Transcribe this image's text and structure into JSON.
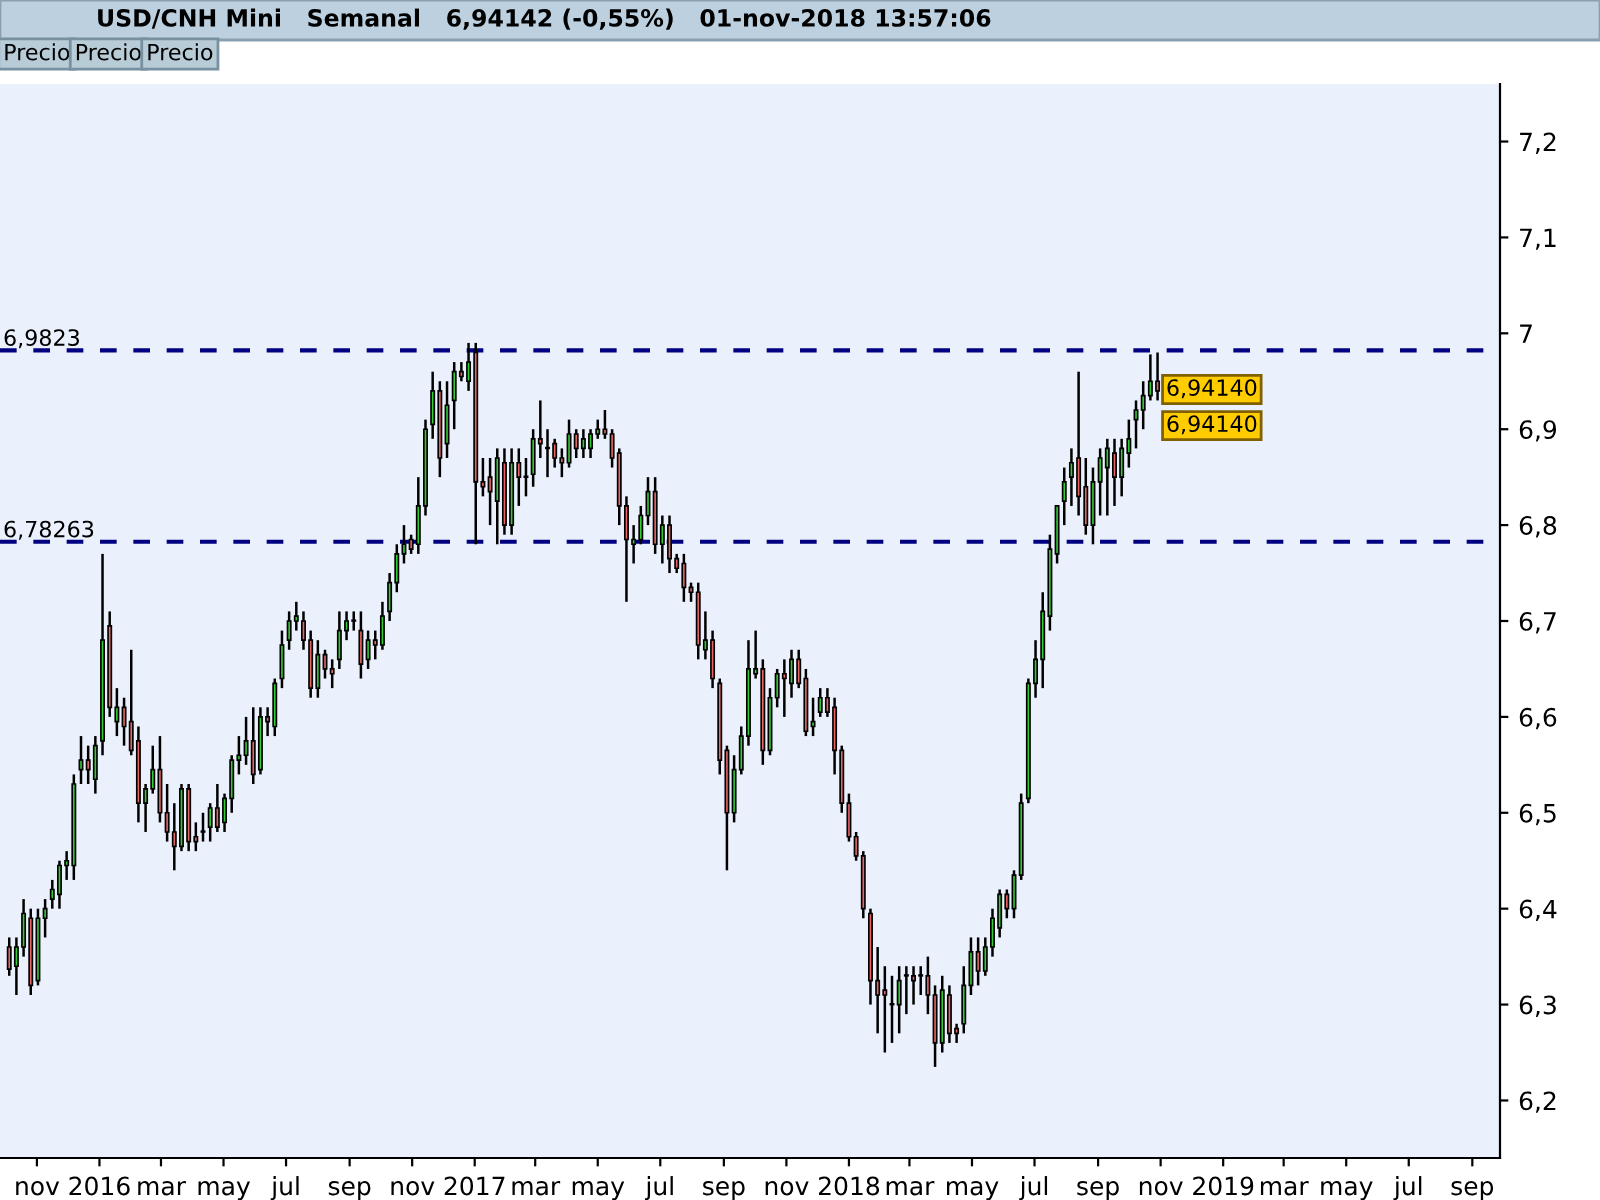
{
  "chart_data": {
    "type": "candlestick",
    "title": "USD/CNH Mini   Semanal   6,94142 (-0,55%)   01-nov-2018 13:57:06",
    "x": [
      "2015-10-05",
      "2015-10-12",
      "2015-10-19",
      "2015-10-26",
      "2015-11-02",
      "2015-11-09",
      "2015-11-16",
      "2015-11-23",
      "2015-11-30",
      "2015-12-07",
      "2015-12-14",
      "2015-12-21",
      "2015-12-28",
      "2016-01-04",
      "2016-01-11",
      "2016-01-18",
      "2016-01-25",
      "2016-02-01",
      "2016-02-08",
      "2016-02-15",
      "2016-02-22",
      "2016-02-29",
      "2016-03-07",
      "2016-03-14",
      "2016-03-21",
      "2016-03-28",
      "2016-04-04",
      "2016-04-11",
      "2016-04-18",
      "2016-04-25",
      "2016-05-02",
      "2016-05-09",
      "2016-05-16",
      "2016-05-23",
      "2016-05-30",
      "2016-06-06",
      "2016-06-13",
      "2016-06-20",
      "2016-06-27",
      "2016-07-04",
      "2016-07-11",
      "2016-07-18",
      "2016-07-25",
      "2016-08-01",
      "2016-08-08",
      "2016-08-15",
      "2016-08-22",
      "2016-08-29",
      "2016-09-05",
      "2016-09-12",
      "2016-09-19",
      "2016-09-26",
      "2016-10-03",
      "2016-10-10",
      "2016-10-17",
      "2016-10-24",
      "2016-10-31",
      "2016-11-07",
      "2016-11-14",
      "2016-11-21",
      "2016-11-28",
      "2016-12-05",
      "2016-12-12",
      "2016-12-19",
      "2016-12-26",
      "2017-01-02",
      "2017-01-09",
      "2017-01-16",
      "2017-01-23",
      "2017-01-30",
      "2017-02-06",
      "2017-02-13",
      "2017-02-20",
      "2017-02-27",
      "2017-03-06",
      "2017-03-13",
      "2017-03-20",
      "2017-03-27",
      "2017-04-03",
      "2017-04-10",
      "2017-04-17",
      "2017-04-24",
      "2017-05-01",
      "2017-05-08",
      "2017-05-15",
      "2017-05-22",
      "2017-05-29",
      "2017-06-05",
      "2017-06-12",
      "2017-06-19",
      "2017-06-26",
      "2017-07-03",
      "2017-07-10",
      "2017-07-17",
      "2017-07-24",
      "2017-07-31",
      "2017-08-07",
      "2017-08-14",
      "2017-08-21",
      "2017-08-28",
      "2017-09-04",
      "2017-09-11",
      "2017-09-18",
      "2017-09-25",
      "2017-10-02",
      "2017-10-09",
      "2017-10-16",
      "2017-10-23",
      "2017-10-30",
      "2017-11-06",
      "2017-11-13",
      "2017-11-20",
      "2017-11-27",
      "2017-12-04",
      "2017-12-11",
      "2017-12-18",
      "2017-12-25",
      "2018-01-01",
      "2018-01-08",
      "2018-01-15",
      "2018-01-22",
      "2018-01-29",
      "2018-02-05",
      "2018-02-12",
      "2018-02-19",
      "2018-02-26",
      "2018-03-05",
      "2018-03-12",
      "2018-03-19",
      "2018-03-26",
      "2018-04-02",
      "2018-04-09",
      "2018-04-16",
      "2018-04-23",
      "2018-04-30",
      "2018-05-07",
      "2018-05-14",
      "2018-05-21",
      "2018-05-28",
      "2018-06-04",
      "2018-06-11",
      "2018-06-18",
      "2018-06-25",
      "2018-07-02",
      "2018-07-09",
      "2018-07-16",
      "2018-07-23",
      "2018-07-30",
      "2018-08-06",
      "2018-08-13",
      "2018-08-20",
      "2018-08-27",
      "2018-09-03",
      "2018-09-10",
      "2018-09-17",
      "2018-09-24",
      "2018-10-01",
      "2018-10-08",
      "2018-10-15",
      "2018-10-22",
      "2018-10-29"
    ],
    "ohlc": [
      [
        6.36,
        6.37,
        6.33,
        6.337
      ],
      [
        6.34,
        6.37,
        6.31,
        6.36
      ],
      [
        6.36,
        6.41,
        6.35,
        6.395
      ],
      [
        6.39,
        6.4,
        6.31,
        6.32
      ],
      [
        6.325,
        6.4,
        6.32,
        6.39
      ],
      [
        6.39,
        6.41,
        6.37,
        6.4
      ],
      [
        6.41,
        6.43,
        6.4,
        6.42
      ],
      [
        6.415,
        6.45,
        6.4,
        6.445
      ],
      [
        6.445,
        6.46,
        6.43,
        6.45
      ],
      [
        6.445,
        6.54,
        6.43,
        6.53
      ],
      [
        6.545,
        6.58,
        6.53,
        6.555
      ],
      [
        6.555,
        6.57,
        6.53,
        6.545
      ],
      [
        6.535,
        6.58,
        6.52,
        6.57
      ],
      [
        6.575,
        6.77,
        6.56,
        6.68
      ],
      [
        6.695,
        6.71,
        6.6,
        6.61
      ],
      [
        6.595,
        6.63,
        6.58,
        6.61
      ],
      [
        6.61,
        6.62,
        6.57,
        6.59
      ],
      [
        6.595,
        6.67,
        6.56,
        6.565
      ],
      [
        6.575,
        6.59,
        6.49,
        6.51
      ],
      [
        6.51,
        6.53,
        6.48,
        6.525
      ],
      [
        6.525,
        6.57,
        6.52,
        6.545
      ],
      [
        6.545,
        6.58,
        6.49,
        6.5
      ],
      [
        6.5,
        6.53,
        6.47,
        6.48
      ],
      [
        6.48,
        6.51,
        6.44,
        6.465
      ],
      [
        6.465,
        6.53,
        6.46,
        6.525
      ],
      [
        6.525,
        6.53,
        6.46,
        6.47
      ],
      [
        6.475,
        6.49,
        6.46,
        6.47
      ],
      [
        6.48,
        6.5,
        6.47,
        6.48
      ],
      [
        6.485,
        6.51,
        6.47,
        6.505
      ],
      [
        6.505,
        6.53,
        6.48,
        6.485
      ],
      [
        6.49,
        6.52,
        6.48,
        6.515
      ],
      [
        6.515,
        6.56,
        6.5,
        6.555
      ],
      [
        6.555,
        6.58,
        6.54,
        6.56
      ],
      [
        6.56,
        6.6,
        6.55,
        6.575
      ],
      [
        6.575,
        6.61,
        6.53,
        6.54
      ],
      [
        6.545,
        6.61,
        6.54,
        6.6
      ],
      [
        6.6,
        6.61,
        6.58,
        6.595
      ],
      [
        6.59,
        6.64,
        6.58,
        6.635
      ],
      [
        6.64,
        6.69,
        6.63,
        6.675
      ],
      [
        6.68,
        6.71,
        6.67,
        6.7
      ],
      [
        6.7,
        6.72,
        6.69,
        6.705
      ],
      [
        6.7,
        6.71,
        6.67,
        6.68
      ],
      [
        6.68,
        6.69,
        6.62,
        6.63
      ],
      [
        6.63,
        6.68,
        6.62,
        6.665
      ],
      [
        6.665,
        6.67,
        6.64,
        6.65
      ],
      [
        6.65,
        6.66,
        6.63,
        6.645
      ],
      [
        6.66,
        6.71,
        6.65,
        6.69
      ],
      [
        6.69,
        6.71,
        6.68,
        6.7
      ],
      [
        6.7,
        6.71,
        6.69,
        6.7
      ],
      [
        6.69,
        6.71,
        6.64,
        6.655
      ],
      [
        6.66,
        6.69,
        6.65,
        6.68
      ],
      [
        6.68,
        6.69,
        6.66,
        6.675
      ],
      [
        6.675,
        6.72,
        6.67,
        6.705
      ],
      [
        6.71,
        6.75,
        6.7,
        6.74
      ],
      [
        6.74,
        6.78,
        6.73,
        6.77
      ],
      [
        6.77,
        6.8,
        6.76,
        6.78
      ],
      [
        6.785,
        6.79,
        6.77,
        6.775
      ],
      [
        6.78,
        6.85,
        6.77,
        6.82
      ],
      [
        6.82,
        6.91,
        6.81,
        6.9
      ],
      [
        6.905,
        6.96,
        6.89,
        6.94
      ],
      [
        6.94,
        6.95,
        6.85,
        6.87
      ],
      [
        6.885,
        6.95,
        6.87,
        6.925
      ],
      [
        6.93,
        6.97,
        6.9,
        6.96
      ],
      [
        6.96,
        6.97,
        6.95,
        6.955
      ],
      [
        6.95,
        6.99,
        6.94,
        6.97
      ],
      [
        6.98,
        6.99,
        6.78,
        6.845
      ],
      [
        6.845,
        6.87,
        6.83,
        6.84
      ],
      [
        6.85,
        6.87,
        6.8,
        6.835
      ],
      [
        6.825,
        6.88,
        6.78,
        6.87
      ],
      [
        6.865,
        6.88,
        6.79,
        6.8
      ],
      [
        6.8,
        6.88,
        6.79,
        6.865
      ],
      [
        6.865,
        6.88,
        6.82,
        6.85
      ],
      [
        6.85,
        6.87,
        6.83,
        6.85
      ],
      [
        6.853,
        6.9,
        6.84,
        6.89
      ],
      [
        6.89,
        6.93,
        6.87,
        6.885
      ],
      [
        6.88,
        6.9,
        6.85,
        6.88
      ],
      [
        6.885,
        6.89,
        6.86,
        6.87
      ],
      [
        6.87,
        6.88,
        6.85,
        6.865
      ],
      [
        6.865,
        6.91,
        6.86,
        6.895
      ],
      [
        6.895,
        6.9,
        6.87,
        6.88
      ],
      [
        6.88,
        6.9,
        6.87,
        6.89
      ],
      [
        6.88,
        6.9,
        6.87,
        6.895
      ],
      [
        6.895,
        6.91,
        6.89,
        6.9
      ],
      [
        6.9,
        6.92,
        6.89,
        6.895
      ],
      [
        6.895,
        6.9,
        6.86,
        6.87
      ],
      [
        6.875,
        6.88,
        6.8,
        6.82
      ],
      [
        6.82,
        6.83,
        6.72,
        6.785
      ],
      [
        6.78,
        6.8,
        6.76,
        6.785
      ],
      [
        6.785,
        6.82,
        6.78,
        6.81
      ],
      [
        6.81,
        6.85,
        6.8,
        6.835
      ],
      [
        6.835,
        6.85,
        6.77,
        6.78
      ],
      [
        6.78,
        6.81,
        6.76,
        6.8
      ],
      [
        6.8,
        6.81,
        6.75,
        6.765
      ],
      [
        6.765,
        6.77,
        6.75,
        6.755
      ],
      [
        6.76,
        6.77,
        6.72,
        6.735
      ],
      [
        6.735,
        6.74,
        6.72,
        6.73
      ],
      [
        6.73,
        6.74,
        6.66,
        6.675
      ],
      [
        6.67,
        6.71,
        6.66,
        6.68
      ],
      [
        6.68,
        6.69,
        6.63,
        6.64
      ],
      [
        6.635,
        6.64,
        6.54,
        6.555
      ],
      [
        6.565,
        6.57,
        6.44,
        6.5
      ],
      [
        6.5,
        6.56,
        6.49,
        6.545
      ],
      [
        6.545,
        6.59,
        6.54,
        6.58
      ],
      [
        6.58,
        6.68,
        6.57,
        6.65
      ],
      [
        6.645,
        6.69,
        6.64,
        6.65
      ],
      [
        6.65,
        6.66,
        6.55,
        6.565
      ],
      [
        6.565,
        6.63,
        6.56,
        6.62
      ],
      [
        6.62,
        6.65,
        6.61,
        6.645
      ],
      [
        6.645,
        6.66,
        6.6,
        6.64
      ],
      [
        6.635,
        6.67,
        6.62,
        6.66
      ],
      [
        6.66,
        6.67,
        6.63,
        6.635
      ],
      [
        6.64,
        6.65,
        6.58,
        6.585
      ],
      [
        6.59,
        6.62,
        6.58,
        6.595
      ],
      [
        6.605,
        6.63,
        6.6,
        6.62
      ],
      [
        6.62,
        6.63,
        6.6,
        6.605
      ],
      [
        6.61,
        6.62,
        6.54,
        6.565
      ],
      [
        6.565,
        6.57,
        6.5,
        6.51
      ],
      [
        6.51,
        6.52,
        6.47,
        6.475
      ],
      [
        6.475,
        6.48,
        6.45,
        6.455
      ],
      [
        6.455,
        6.46,
        6.39,
        6.4
      ],
      [
        6.395,
        6.4,
        6.3,
        6.325
      ],
      [
        6.325,
        6.36,
        6.27,
        6.31
      ],
      [
        6.315,
        6.34,
        6.25,
        6.31
      ],
      [
        6.3,
        6.33,
        6.26,
        6.3
      ],
      [
        6.3,
        6.34,
        6.27,
        6.325
      ],
      [
        6.33,
        6.34,
        6.29,
        6.33
      ],
      [
        6.33,
        6.34,
        6.3,
        6.325
      ],
      [
        6.33,
        6.34,
        6.31,
        6.33
      ],
      [
        6.33,
        6.35,
        6.29,
        6.31
      ],
      [
        6.31,
        6.32,
        6.235,
        6.26
      ],
      [
        6.26,
        6.33,
        6.25,
        6.315
      ],
      [
        6.31,
        6.32,
        6.26,
        6.27
      ],
      [
        6.275,
        6.28,
        6.26,
        6.27
      ],
      [
        6.28,
        6.34,
        6.27,
        6.32
      ],
      [
        6.32,
        6.37,
        6.31,
        6.355
      ],
      [
        6.355,
        6.37,
        6.32,
        6.335
      ],
      [
        6.335,
        6.37,
        6.33,
        6.36
      ],
      [
        6.36,
        6.4,
        6.35,
        6.39
      ],
      [
        6.38,
        6.42,
        6.37,
        6.415
      ],
      [
        6.415,
        6.42,
        6.39,
        6.4
      ],
      [
        6.4,
        6.44,
        6.39,
        6.435
      ],
      [
        6.435,
        6.52,
        6.43,
        6.51
      ],
      [
        6.515,
        6.64,
        6.51,
        6.635
      ],
      [
        6.635,
        6.68,
        6.62,
        6.66
      ],
      [
        6.66,
        6.73,
        6.63,
        6.71
      ],
      [
        6.705,
        6.79,
        6.69,
        6.775
      ],
      [
        6.77,
        6.82,
        6.76,
        6.82
      ],
      [
        6.825,
        6.86,
        6.8,
        6.845
      ],
      [
        6.85,
        6.88,
        6.82,
        6.865
      ],
      [
        6.87,
        6.96,
        6.81,
        6.83
      ],
      [
        6.84,
        6.87,
        6.79,
        6.8
      ],
      [
        6.8,
        6.86,
        6.78,
        6.845
      ],
      [
        6.845,
        6.88,
        6.81,
        6.87
      ],
      [
        6.86,
        6.89,
        6.81,
        6.88
      ],
      [
        6.875,
        6.89,
        6.82,
        6.85
      ],
      [
        6.85,
        6.89,
        6.83,
        6.88
      ],
      [
        6.875,
        6.91,
        6.86,
        6.89
      ],
      [
        6.91,
        6.93,
        6.88,
        6.92
      ],
      [
        6.92,
        6.95,
        6.9,
        6.935
      ],
      [
        6.935,
        6.978,
        6.93,
        6.95
      ],
      [
        6.95,
        6.98,
        6.93,
        6.94
      ]
    ],
    "xlim": [
      "2015-09-26",
      "2019-09-28"
    ],
    "xticks": [
      {
        "value": "2015-11-01",
        "label": "nov"
      },
      {
        "value": "2016-01-01",
        "label": "2016"
      },
      {
        "value": "2016-03-01",
        "label": "mar"
      },
      {
        "value": "2016-05-01",
        "label": "may"
      },
      {
        "value": "2016-07-01",
        "label": "jul"
      },
      {
        "value": "2016-09-01",
        "label": "sep"
      },
      {
        "value": "2016-11-01",
        "label": "nov"
      },
      {
        "value": "2017-01-01",
        "label": "2017"
      },
      {
        "value": "2017-03-01",
        "label": "mar"
      },
      {
        "value": "2017-05-01",
        "label": "may"
      },
      {
        "value": "2017-07-01",
        "label": "jul"
      },
      {
        "value": "2017-09-01",
        "label": "sep"
      },
      {
        "value": "2017-11-01",
        "label": "nov"
      },
      {
        "value": "2018-01-01",
        "label": "2018"
      },
      {
        "value": "2018-03-01",
        "label": "mar"
      },
      {
        "value": "2018-05-01",
        "label": "may"
      },
      {
        "value": "2018-07-01",
        "label": "jul"
      },
      {
        "value": "2018-09-01",
        "label": "sep"
      },
      {
        "value": "2018-11-01",
        "label": "nov"
      },
      {
        "value": "2019-01-01",
        "label": "2019"
      },
      {
        "value": "2019-03-01",
        "label": "mar"
      },
      {
        "value": "2019-05-01",
        "label": "may"
      },
      {
        "value": "2019-07-01",
        "label": "jul"
      },
      {
        "value": "2019-09-01",
        "label": "sep"
      }
    ],
    "ylim": [
      6.14,
      7.26
    ],
    "yticks": [
      {
        "value": 6.2,
        "label": "6,2"
      },
      {
        "value": 6.3,
        "label": "6,3"
      },
      {
        "value": 6.4,
        "label": "6,4"
      },
      {
        "value": 6.5,
        "label": "6,5"
      },
      {
        "value": 6.6,
        "label": "6,6"
      },
      {
        "value": 6.7,
        "label": "6,7"
      },
      {
        "value": 6.8,
        "label": "6,8"
      },
      {
        "value": 6.9,
        "label": "6,9"
      },
      7,
      {
        "value": 7.1,
        "label": "7,1"
      },
      {
        "value": 7.2,
        "label": "7,2"
      }
    ],
    "ref_lines": [
      {
        "axis": "y",
        "value": 6.9823,
        "label": "6,9823",
        "color": "#000080",
        "line_style": "dashed"
      },
      {
        "axis": "y",
        "value": 6.78263,
        "label": "6,78263",
        "color": "#000080",
        "line_style": "dashed"
      }
    ],
    "annotations": [
      "Precio",
      "Precio",
      "Precio",
      {
        "text": "6,94140",
        "x": "2018-10-29",
        "y": 6.9414
      },
      {
        "text": "6,94140",
        "x": "2018-10-29",
        "y": 6.9414
      }
    ],
    "grid": false,
    "legend": false
  }
}
